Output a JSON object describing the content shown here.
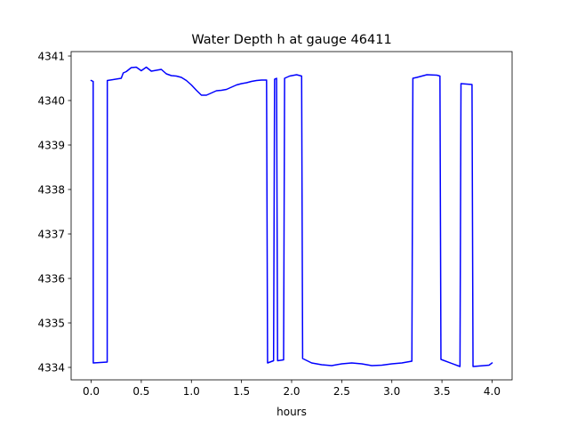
{
  "chart_data": {
    "type": "line",
    "title": "Water Depth h at gauge 46411",
    "xlabel": "hours",
    "ylabel": "",
    "xlim": [
      -0.2,
      4.2
    ],
    "ylim": [
      4333.72,
      4341.1
    ],
    "xticks": [
      0.0,
      0.5,
      1.0,
      1.5,
      2.0,
      2.5,
      3.0,
      3.5,
      4.0
    ],
    "xtick_labels": [
      "0.0",
      "0.5",
      "1.0",
      "1.5",
      "2.0",
      "2.5",
      "3.0",
      "3.5",
      "4.0"
    ],
    "yticks": [
      4334,
      4335,
      4336,
      4337,
      4338,
      4339,
      4340,
      4341
    ],
    "ytick_labels": [
      "4334",
      "4335",
      "4336",
      "4337",
      "4338",
      "4339",
      "4340",
      "4341"
    ],
    "grid": false,
    "legend": "none",
    "series": [
      {
        "color": "#0000ff",
        "x": [
          0.0,
          0.02,
          0.021,
          0.16,
          0.161,
          0.3,
          0.32,
          0.35,
          0.4,
          0.45,
          0.5,
          0.55,
          0.6,
          0.65,
          0.7,
          0.75,
          0.8,
          0.85,
          0.9,
          0.95,
          1.0,
          1.05,
          1.1,
          1.15,
          1.2,
          1.25,
          1.3,
          1.35,
          1.4,
          1.45,
          1.5,
          1.55,
          1.6,
          1.65,
          1.7,
          1.75,
          1.76,
          1.82,
          1.83,
          1.85,
          1.86,
          1.92,
          1.93,
          1.98,
          2.05,
          2.1,
          2.11,
          2.2,
          2.3,
          2.4,
          2.5,
          2.6,
          2.7,
          2.8,
          2.9,
          3.0,
          3.1,
          3.2,
          3.21,
          3.25,
          3.35,
          3.45,
          3.48,
          3.49,
          3.68,
          3.69,
          3.8,
          3.81,
          3.97,
          4.0
        ],
        "y": [
          4340.45,
          4340.43,
          4334.1,
          4334.12,
          4340.45,
          4340.5,
          4340.62,
          4340.65,
          4340.74,
          4340.75,
          4340.67,
          4340.75,
          4340.66,
          4340.68,
          4340.7,
          4340.6,
          4340.56,
          4340.55,
          4340.52,
          4340.45,
          4340.35,
          4340.23,
          4340.12,
          4340.12,
          4340.17,
          4340.22,
          4340.23,
          4340.25,
          4340.3,
          4340.35,
          4340.38,
          4340.4,
          4340.43,
          4340.45,
          4340.46,
          4340.46,
          4334.1,
          4334.15,
          4340.48,
          4340.5,
          4334.15,
          4334.17,
          4340.5,
          4340.55,
          4340.58,
          4340.55,
          4334.2,
          4334.1,
          4334.06,
          4334.04,
          4334.08,
          4334.1,
          4334.08,
          4334.04,
          4334.05,
          4334.08,
          4334.1,
          4334.14,
          4340.5,
          4340.52,
          4340.58,
          4340.57,
          4340.55,
          4334.18,
          4334.02,
          4340.38,
          4340.36,
          4334.02,
          4334.05,
          4334.1
        ]
      }
    ]
  }
}
